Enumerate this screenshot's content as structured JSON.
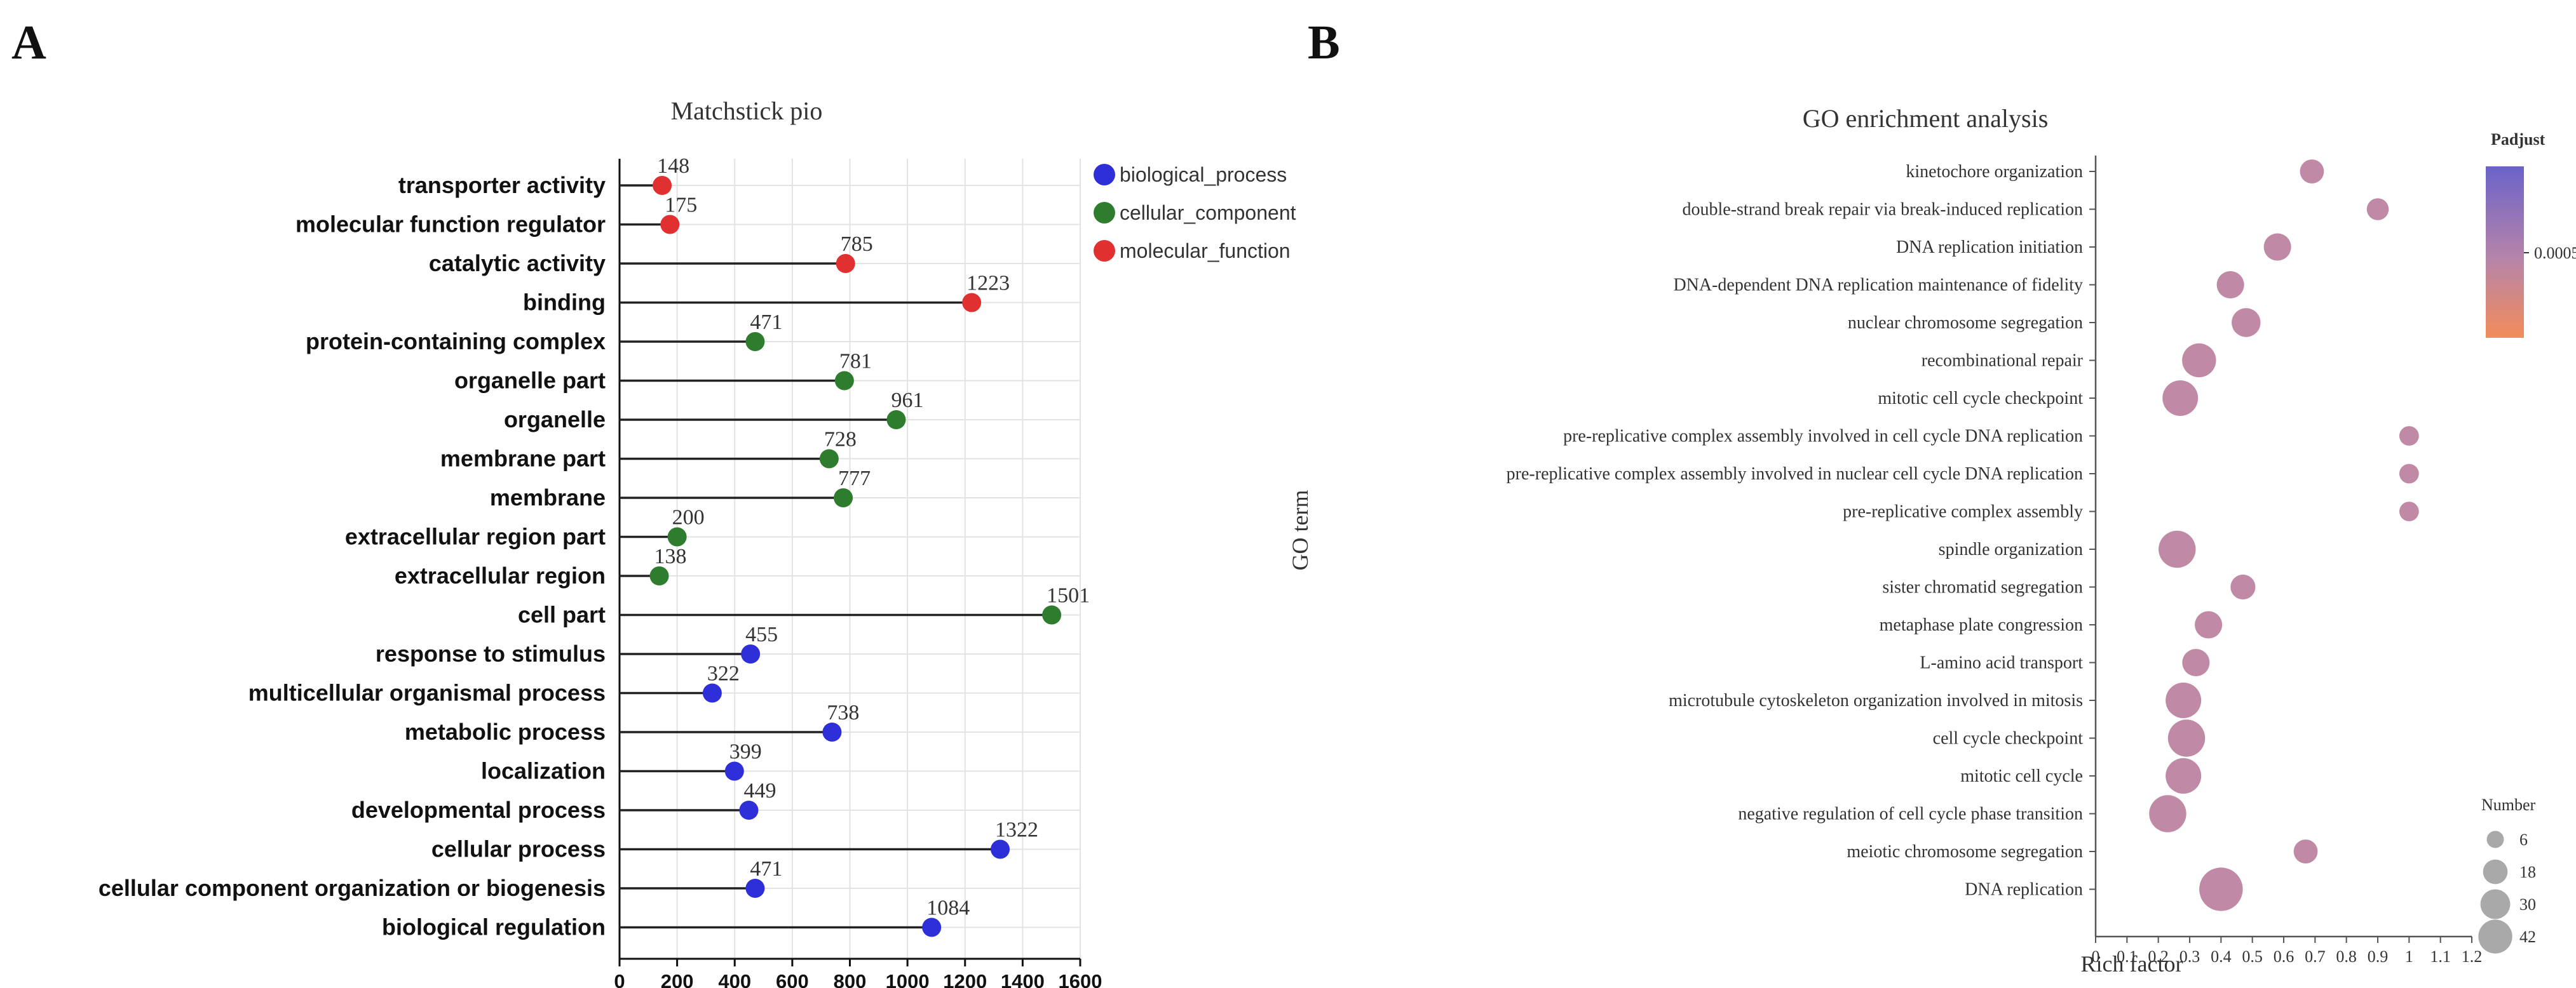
{
  "colors": {
    "biological_process": "#2f2fd9",
    "cellular_component": "#2e7d2e",
    "molecular_function": "#e03030",
    "stick": "#222222",
    "bubble": "#c08aa6",
    "gradient_top": "#6b63c9",
    "gradient_mid": "#b785a8",
    "gradient_bottom": "#f28c5a"
  },
  "chart_data": [
    {
      "panel": "A",
      "type": "lollipop",
      "title": "Matchstick pio",
      "orientation": "horizontal",
      "xlim": [
        0,
        1600
      ],
      "xticks": [
        0,
        200,
        400,
        600,
        800,
        1000,
        1200,
        1400,
        1600
      ],
      "legend_position": "top-right",
      "legend": [
        "biological_process",
        "cellular_component",
        "molecular_function"
      ],
      "points": [
        {
          "label": "transporter activity",
          "value": 148,
          "group": "molecular_function"
        },
        {
          "label": "molecular function regulator",
          "value": 175,
          "group": "molecular_function"
        },
        {
          "label": "catalytic activity",
          "value": 785,
          "group": "molecular_function"
        },
        {
          "label": "binding",
          "value": 1223,
          "group": "molecular_function"
        },
        {
          "label": "protein-containing complex",
          "value": 471,
          "group": "cellular_component"
        },
        {
          "label": "organelle part",
          "value": 781,
          "group": "cellular_component"
        },
        {
          "label": "organelle",
          "value": 961,
          "group": "cellular_component"
        },
        {
          "label": "membrane part",
          "value": 728,
          "group": "cellular_component"
        },
        {
          "label": "membrane",
          "value": 777,
          "group": "cellular_component"
        },
        {
          "label": "extracellular region part",
          "value": 200,
          "group": "cellular_component"
        },
        {
          "label": "extracellular region",
          "value": 138,
          "group": "cellular_component"
        },
        {
          "label": "cell part",
          "value": 1501,
          "group": "cellular_component"
        },
        {
          "label": "response to stimulus",
          "value": 455,
          "group": "biological_process"
        },
        {
          "label": "multicellular organismal process",
          "value": 322,
          "group": "biological_process"
        },
        {
          "label": "metabolic process",
          "value": 738,
          "group": "biological_process"
        },
        {
          "label": "localization",
          "value": 399,
          "group": "biological_process"
        },
        {
          "label": "developmental process",
          "value": 449,
          "group": "biological_process"
        },
        {
          "label": "cellular process",
          "value": 1322,
          "group": "biological_process"
        },
        {
          "label": "cellular component organization or biogenesis",
          "value": 471,
          "group": "biological_process"
        },
        {
          "label": "biological regulation",
          "value": 1084,
          "group": "biological_process"
        }
      ]
    },
    {
      "panel": "B",
      "type": "scatter",
      "title": "GO enrichment analysis",
      "xlabel": "Rich factor",
      "ylabel": "GO term",
      "xlim": [
        0,
        1.2
      ],
      "xticks": [
        0,
        0.1,
        0.2,
        0.3,
        0.4,
        0.5,
        0.6,
        0.7,
        0.8,
        0.9,
        1,
        1.1,
        1.2
      ],
      "color_legend": {
        "title": "Padjust",
        "tick": "0.0005"
      },
      "size_legend": {
        "title": "Number",
        "values": [
          6,
          18,
          30,
          42
        ]
      },
      "points": [
        {
          "term": "kinetochore organization",
          "rich_factor": 0.69,
          "number": 8
        },
        {
          "term": "double-strand break repair via break-induced replication",
          "rich_factor": 0.9,
          "number": 6
        },
        {
          "term": "DNA replication initiation",
          "rich_factor": 0.58,
          "number": 12
        },
        {
          "term": "DNA-dependent DNA replication maintenance of fidelity",
          "rich_factor": 0.43,
          "number": 12
        },
        {
          "term": "nuclear chromosome segregation",
          "rich_factor": 0.48,
          "number": 14
        },
        {
          "term": "recombinational repair",
          "rich_factor": 0.33,
          "number": 22
        },
        {
          "term": "mitotic cell cycle checkpoint",
          "rich_factor": 0.27,
          "number": 25
        },
        {
          "term": "pre-replicative complex assembly involved in cell cycle DNA replication",
          "rich_factor": 1,
          "number": 4
        },
        {
          "term": "pre-replicative complex assembly involved in nuclear cell cycle DNA replication",
          "rich_factor": 1,
          "number": 4
        },
        {
          "term": "pre-replicative complex assembly",
          "rich_factor": 1,
          "number": 4
        },
        {
          "term": "spindle organization",
          "rich_factor": 0.26,
          "number": 28
        },
        {
          "term": "sister chromatid segregation",
          "rich_factor": 0.47,
          "number": 9
        },
        {
          "term": "metaphase plate congression",
          "rich_factor": 0.36,
          "number": 12
        },
        {
          "term": "L-amino acid transport",
          "rich_factor": 0.32,
          "number": 12
        },
        {
          "term": "microtubule cytoskeleton organization involved in mitosis",
          "rich_factor": 0.28,
          "number": 25
        },
        {
          "term": "cell cycle checkpoint",
          "rich_factor": 0.29,
          "number": 28
        },
        {
          "term": "mitotic cell cycle",
          "rich_factor": 0.28,
          "number": 25
        },
        {
          "term": "negative regulation of cell cycle phase transition",
          "rich_factor": 0.23,
          "number": 28
        },
        {
          "term": "meiotic chromosome segregation",
          "rich_factor": 0.67,
          "number": 8
        },
        {
          "term": "DNA replication",
          "rich_factor": 0.4,
          "number": 42
        }
      ]
    }
  ]
}
